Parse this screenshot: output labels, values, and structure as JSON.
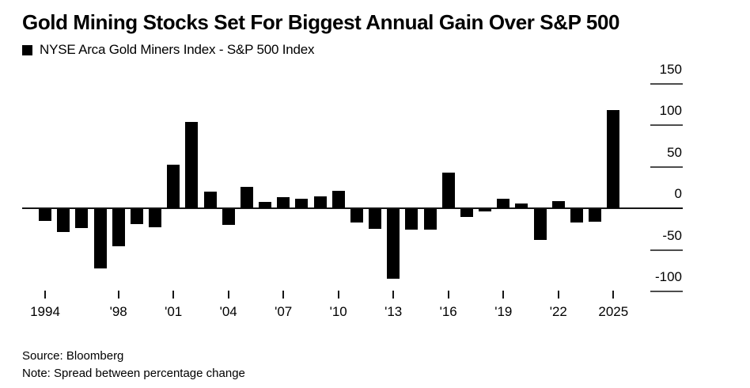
{
  "header": {
    "title": "Gold Mining Stocks Set For Biggest Annual Gain Over S&P 500",
    "legend_label": "NYSE Arca Gold Miners Index - S&P 500 Index"
  },
  "footer": {
    "source": "Source: Bloomberg",
    "note": "Note: Spread between percentage change"
  },
  "chart_data": {
    "type": "bar",
    "title": "Gold Mining Stocks Set For Biggest Annual Gain Over S&P 500",
    "legend": "NYSE Arca Gold Miners Index - S&P 500 Index",
    "xlabel": "",
    "ylabel": "",
    "ylim": [
      -115,
      155
    ],
    "grid": "right-side tick segments only",
    "legend_position": "top-left",
    "bar_color": "#000000",
    "categories": [
      1994,
      1995,
      1996,
      1997,
      1998,
      1999,
      2000,
      2001,
      2002,
      2003,
      2004,
      2005,
      2006,
      2007,
      2008,
      2009,
      2010,
      2011,
      2012,
      2013,
      2014,
      2015,
      2016,
      2017,
      2018,
      2019,
      2020,
      2021,
      2022,
      2023,
      2024,
      2025
    ],
    "values": [
      -14,
      -28,
      -23,
      -71,
      -45,
      -18,
      -22,
      52,
      104,
      20,
      -19,
      26,
      8,
      13,
      11,
      14,
      21,
      -16,
      -24,
      -84,
      -25,
      -25,
      43,
      -9,
      -3,
      11,
      6,
      -37,
      9,
      -16,
      -15,
      118
    ],
    "y_ticks": [
      150,
      100,
      50,
      0,
      -50,
      -100
    ],
    "x_ticks": [
      {
        "label": "1994",
        "year": 1994
      },
      {
        "label": "'98",
        "year": 1998
      },
      {
        "label": "'01",
        "year": 2001
      },
      {
        "label": "'04",
        "year": 2004
      },
      {
        "label": "'07",
        "year": 2007
      },
      {
        "label": "'10",
        "year": 2010
      },
      {
        "label": "'13",
        "year": 2013
      },
      {
        "label": "'16",
        "year": 2016
      },
      {
        "label": "'19",
        "year": 2019
      },
      {
        "label": "'22",
        "year": 2022
      },
      {
        "label": "2025",
        "year": 2025
      }
    ]
  }
}
